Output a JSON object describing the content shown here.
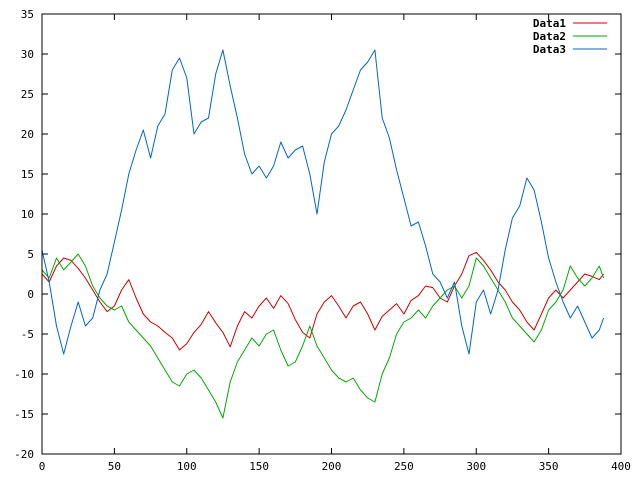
{
  "chart_data": {
    "type": "line",
    "title": "",
    "xlabel": "",
    "ylabel": "",
    "xlim": [
      0,
      400
    ],
    "ylim": [
      -20,
      35
    ],
    "xticks": [
      0,
      50,
      100,
      150,
      200,
      250,
      300,
      350,
      400
    ],
    "yticks": [
      -20,
      -15,
      -10,
      -5,
      0,
      5,
      10,
      15,
      20,
      25,
      30,
      35
    ],
    "grid": false,
    "legend_position": "top-right",
    "series": [
      {
        "name": "Data1",
        "color": "#cc0000",
        "x": [
          0,
          5,
          10,
          15,
          20,
          25,
          30,
          35,
          40,
          45,
          50,
          55,
          60,
          65,
          70,
          75,
          80,
          85,
          90,
          95,
          100,
          105,
          110,
          115,
          120,
          125,
          130,
          135,
          140,
          145,
          150,
          155,
          160,
          165,
          170,
          175,
          180,
          185,
          190,
          195,
          200,
          205,
          210,
          215,
          220,
          225,
          230,
          235,
          240,
          245,
          250,
          255,
          260,
          265,
          270,
          275,
          280,
          285,
          290,
          295,
          300,
          305,
          310,
          315,
          320,
          325,
          330,
          335,
          340,
          345,
          350,
          355,
          360,
          365,
          370,
          375,
          380,
          385,
          388
        ],
        "y": [
          2.5,
          1.5,
          3.5,
          4.5,
          4.2,
          3.2,
          2.0,
          0.5,
          -1.0,
          -2.2,
          -1.5,
          0.5,
          1.8,
          -0.5,
          -2.5,
          -3.5,
          -4.0,
          -4.8,
          -5.5,
          -7.0,
          -6.2,
          -4.8,
          -3.8,
          -2.2,
          -3.6,
          -4.8,
          -6.6,
          -4.0,
          -2.2,
          -3.0,
          -1.5,
          -0.5,
          -1.8,
          -0.2,
          -1.2,
          -3.2,
          -4.8,
          -5.5,
          -2.5,
          -1.0,
          -0.2,
          -1.5,
          -3.0,
          -1.5,
          -1.0,
          -2.5,
          -4.5,
          -2.8,
          -2.0,
          -1.2,
          -2.5,
          -0.8,
          -0.2,
          1.0,
          0.8,
          -0.5,
          -1.0,
          1.0,
          2.5,
          4.8,
          5.2,
          4.2,
          3.0,
          1.5,
          0.5,
          -1.0,
          -2.0,
          -3.5,
          -4.5,
          -2.5,
          -0.5,
          0.5,
          -0.5,
          0.5,
          1.5,
          2.5,
          2.2,
          1.8,
          2.5
        ]
      },
      {
        "name": "Data2",
        "color": "#00aa00",
        "x": [
          0,
          5,
          10,
          15,
          20,
          25,
          30,
          35,
          40,
          45,
          50,
          55,
          60,
          65,
          70,
          75,
          80,
          85,
          90,
          95,
          100,
          105,
          110,
          115,
          120,
          125,
          130,
          135,
          140,
          145,
          150,
          155,
          160,
          165,
          170,
          175,
          180,
          185,
          190,
          195,
          200,
          205,
          210,
          215,
          220,
          225,
          230,
          235,
          240,
          245,
          250,
          255,
          260,
          265,
          270,
          275,
          280,
          285,
          290,
          295,
          300,
          305,
          310,
          315,
          320,
          325,
          330,
          335,
          340,
          345,
          350,
          355,
          360,
          365,
          370,
          375,
          380,
          385,
          388
        ],
        "y": [
          3.0,
          2.0,
          4.5,
          3.0,
          4.0,
          5.0,
          3.5,
          1.0,
          -0.5,
          -1.5,
          -2.0,
          -1.5,
          -3.5,
          -4.5,
          -5.5,
          -6.5,
          -8.0,
          -9.5,
          -11.0,
          -11.5,
          -10.0,
          -9.5,
          -10.5,
          -12.0,
          -13.5,
          -15.5,
          -11.0,
          -8.5,
          -7.0,
          -5.5,
          -6.5,
          -5.0,
          -4.5,
          -7.0,
          -9.0,
          -8.5,
          -6.5,
          -4.0,
          -6.5,
          -8.0,
          -9.5,
          -10.5,
          -11.0,
          -10.5,
          -12.0,
          -13.0,
          -13.5,
          -10.0,
          -8.0,
          -5.0,
          -3.5,
          -3.0,
          -2.0,
          -3.0,
          -1.5,
          -0.5,
          0.5,
          1.0,
          -0.5,
          1.0,
          4.5,
          3.5,
          2.0,
          0.5,
          -1.0,
          -3.0,
          -4.0,
          -5.0,
          -6.0,
          -4.5,
          -2.0,
          -1.0,
          0.5,
          3.5,
          2.0,
          1.0,
          2.0,
          3.5,
          2.0
        ]
      },
      {
        "name": "Data3",
        "color": "#0066cc",
        "x": [
          0,
          5,
          10,
          15,
          20,
          25,
          30,
          35,
          40,
          45,
          50,
          55,
          60,
          65,
          70,
          75,
          80,
          85,
          90,
          95,
          100,
          105,
          110,
          115,
          120,
          125,
          130,
          135,
          140,
          145,
          150,
          155,
          160,
          165,
          170,
          175,
          180,
          185,
          190,
          195,
          200,
          205,
          210,
          215,
          220,
          225,
          230,
          235,
          240,
          245,
          250,
          255,
          260,
          265,
          270,
          275,
          280,
          285,
          290,
          295,
          300,
          305,
          310,
          315,
          320,
          325,
          330,
          335,
          340,
          345,
          350,
          355,
          360,
          365,
          370,
          375,
          380,
          385,
          388
        ],
        "y": [
          5.5,
          1.5,
          -4.0,
          -7.5,
          -4.0,
          -1.0,
          -4.0,
          -3.0,
          0.5,
          2.5,
          6.5,
          10.5,
          15.0,
          18.0,
          20.5,
          17.0,
          21.0,
          22.5,
          28.0,
          29.5,
          27.0,
          20.0,
          21.5,
          22.0,
          27.5,
          30.5,
          26.0,
          22.0,
          17.5,
          15.0,
          16.0,
          14.5,
          16.0,
          19.0,
          17.0,
          18.0,
          18.5,
          15.0,
          10.0,
          16.5,
          20.0,
          21.0,
          23.0,
          25.5,
          28.0,
          29.0,
          30.5,
          22.0,
          19.5,
          15.5,
          12.0,
          8.5,
          9.0,
          6.0,
          2.5,
          1.5,
          -0.5,
          1.5,
          -4.0,
          -7.5,
          -1.0,
          0.5,
          -2.5,
          0.5,
          5.5,
          9.5,
          11.0,
          14.5,
          13.0,
          9.0,
          4.5,
          1.5,
          -1.0,
          -3.0,
          -1.5,
          -3.5,
          -5.5,
          -4.5,
          -3.0
        ]
      }
    ]
  }
}
